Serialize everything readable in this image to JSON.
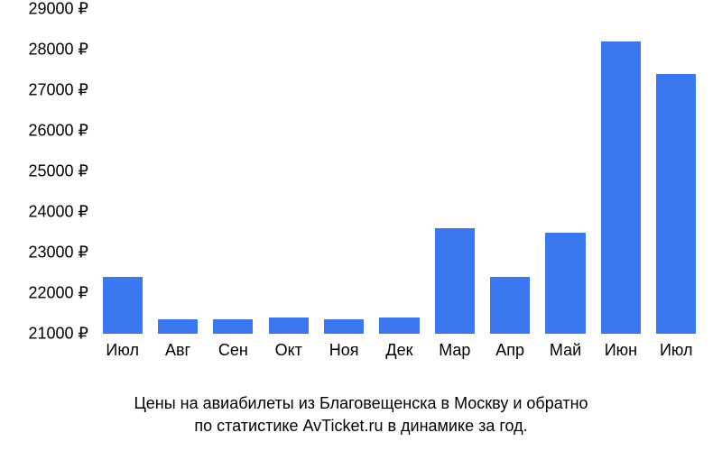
{
  "price_chart": {
    "type": "bar",
    "categories": [
      "Июл",
      "Авг",
      "Сен",
      "Окт",
      "Ноя",
      "Дек",
      "Мар",
      "Апр",
      "Май",
      "Июн",
      "Июл"
    ],
    "values": [
      22400,
      21350,
      21350,
      21400,
      21350,
      21400,
      23600,
      22400,
      23500,
      28200,
      27400
    ],
    "bar_color": "#3a78f2",
    "background_color": "#ffffff",
    "text_color": "#000000",
    "y_axis": {
      "min": 21000,
      "max": 29000,
      "step": 1000,
      "suffix": " ₽",
      "label_fontsize": 18
    },
    "x_axis": {
      "label_fontsize": 18
    },
    "bar_width_ratio": 0.72,
    "caption_line1": "Цены на авиабилеты из Благовещенска в Москву и обратно",
    "caption_line2": "по статистике AvTicket.ru в динамике за год.",
    "caption_fontsize": 18
  }
}
